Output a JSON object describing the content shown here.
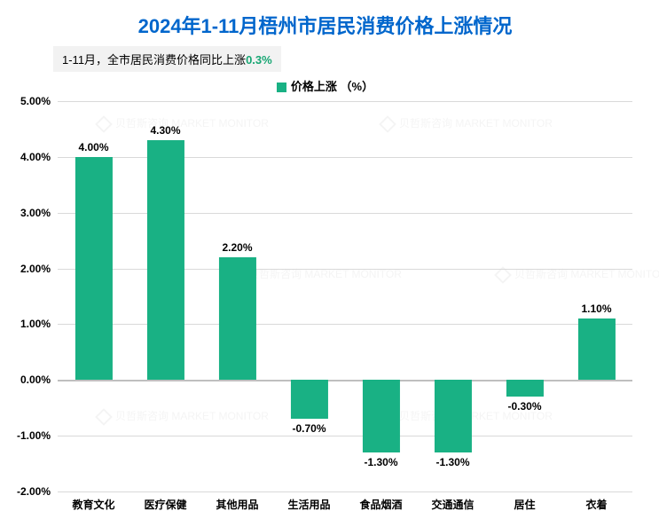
{
  "chart": {
    "type": "bar",
    "title": "2024年1-11月梧州市居民消费价格上涨情况",
    "title_color": "#0066cc",
    "title_fontsize": 22,
    "subtitle_prefix": "1-11月，全市居民消费价格同比上涨",
    "subtitle_value": "0.3%",
    "subtitle_value_color": "#17a673",
    "subtitle_bg": "#f2f2f2",
    "legend_label": "价格上涨 （%）",
    "legend_color": "#19b184",
    "categories": [
      "教育文化",
      "医疗保健",
      "其他用品",
      "生活用品",
      "食品烟酒",
      "交通通信",
      "居住",
      "衣着"
    ],
    "values": [
      4.0,
      4.3,
      2.2,
      -0.7,
      -1.3,
      -1.3,
      -0.3,
      1.1
    ],
    "value_labels": [
      "4.00%",
      "4.30%",
      "2.20%",
      "-0.70%",
      "-1.30%",
      "-1.30%",
      "-0.30%",
      "1.10%"
    ],
    "bar_color": "#19b184",
    "ylim": [
      -2.0,
      5.0
    ],
    "yticks": [
      -2.0,
      -1.0,
      0.0,
      1.0,
      2.0,
      3.0,
      4.0,
      5.0
    ],
    "ytick_labels": [
      "-2.00%",
      "-1.00%",
      "0.00%",
      "1.00%",
      "2.00%",
      "3.00%",
      "4.00%",
      "5.00%"
    ],
    "grid_color": "#d9d9d9",
    "zero_line_color": "#bfbfbf",
    "bar_width_ratio": 0.52,
    "background_color": "#ffffff",
    "label_fontsize": 12,
    "axis_text_color": "#000000",
    "watermark_text": "贝哲斯咨询  MARKET MONITOR"
  }
}
